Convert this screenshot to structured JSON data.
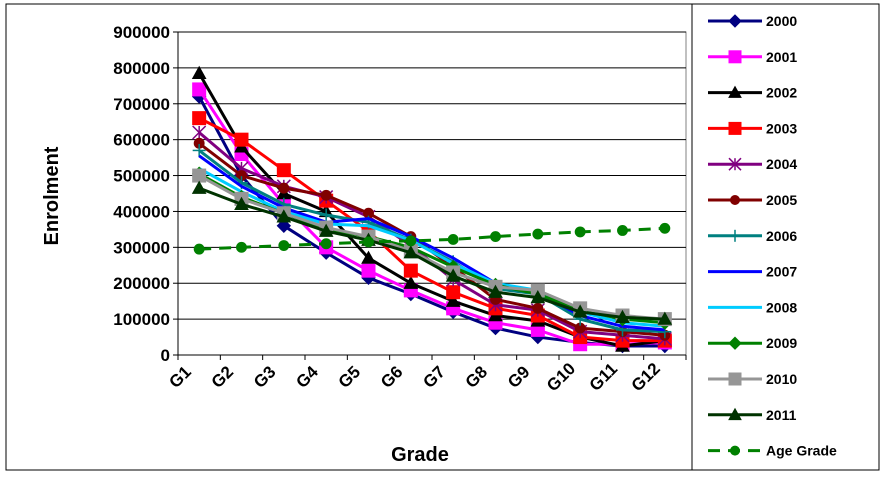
{
  "chart_data": {
    "type": "line",
    "title": "",
    "xlabel": "Grade",
    "ylabel": "Enrolment",
    "categories": [
      "G1",
      "G2",
      "G3",
      "G4",
      "G5",
      "G6",
      "G7",
      "G8",
      "G9",
      "G10",
      "G11",
      "G12"
    ],
    "y_ticks": [
      "0",
      "100000",
      "200000",
      "300000",
      "400000",
      "500000",
      "600000",
      "700000",
      "800000",
      "900000"
    ],
    "ylim": [
      0,
      900000
    ],
    "grid": "horizontal",
    "legend_position": "right",
    "series": [
      {
        "name": "2000",
        "color": "#000080",
        "marker": "diamond",
        "dashed": false,
        "values": [
          720000,
          500000,
          360000,
          285000,
          215000,
          170000,
          120000,
          75000,
          50000,
          35000,
          25000,
          25000
        ]
      },
      {
        "name": "2001",
        "color": "#FF00FF",
        "marker": "square",
        "dashed": false,
        "values": [
          740000,
          560000,
          420000,
          300000,
          235000,
          180000,
          130000,
          90000,
          70000,
          30000,
          30000,
          35000
        ]
      },
      {
        "name": "2002",
        "color": "#000000",
        "marker": "triangle",
        "dashed": false,
        "values": [
          785000,
          580000,
          450000,
          400000,
          270000,
          200000,
          150000,
          110000,
          95000,
          50000,
          25000,
          40000
        ]
      },
      {
        "name": "2003",
        "color": "#FF0000",
        "marker": "square",
        "dashed": false,
        "values": [
          660000,
          600000,
          515000,
          430000,
          345000,
          235000,
          175000,
          130000,
          110000,
          50000,
          40000,
          40000
        ]
      },
      {
        "name": "2004",
        "color": "#800080",
        "marker": "star",
        "dashed": false,
        "values": [
          620000,
          520000,
          470000,
          440000,
          385000,
          305000,
          210000,
          140000,
          125000,
          65000,
          55000,
          45000
        ]
      },
      {
        "name": "2005",
        "color": "#800000",
        "marker": "circle",
        "dashed": false,
        "values": [
          590000,
          500000,
          465000,
          445000,
          395000,
          330000,
          245000,
          155000,
          130000,
          75000,
          65000,
          55000
        ]
      },
      {
        "name": "2006",
        "color": "#008080",
        "marker": "plus",
        "dashed": false,
        "values": [
          570000,
          480000,
          420000,
          390000,
          370000,
          320000,
          260000,
          185000,
          170000,
          100000,
          70000,
          65000
        ]
      },
      {
        "name": "2007",
        "color": "#0000FF",
        "marker": "none",
        "dashed": false,
        "values": [
          555000,
          470000,
          410000,
          370000,
          380000,
          330000,
          270000,
          200000,
          175000,
          110000,
          80000,
          70000
        ]
      },
      {
        "name": "2008",
        "color": "#00CCFF",
        "marker": "none",
        "dashed": false,
        "values": [
          520000,
          455000,
          400000,
          365000,
          360000,
          320000,
          255000,
          200000,
          180000,
          120000,
          90000,
          80000
        ]
      },
      {
        "name": "2009",
        "color": "#008000",
        "marker": "diamond",
        "dashed": false,
        "values": [
          505000,
          440000,
          395000,
          350000,
          330000,
          300000,
          245000,
          195000,
          170000,
          125000,
          100000,
          90000
        ]
      },
      {
        "name": "2010",
        "color": "#969696",
        "marker": "square",
        "dashed": false,
        "values": [
          500000,
          435000,
          395000,
          355000,
          330000,
          290000,
          230000,
          190000,
          180000,
          130000,
          110000,
          100000
        ]
      },
      {
        "name": "2011",
        "color": "#003300",
        "marker": "triangle",
        "dashed": false,
        "values": [
          465000,
          420000,
          385000,
          345000,
          320000,
          285000,
          220000,
          175000,
          160000,
          120000,
          105000,
          100000
        ]
      },
      {
        "name": "Age Grade",
        "color": "#008000",
        "marker": "circle",
        "dashed": true,
        "values": [
          295000,
          300000,
          305000,
          310000,
          315000,
          318000,
          322000,
          330000,
          337000,
          343000,
          347000,
          353000
        ]
      }
    ]
  }
}
